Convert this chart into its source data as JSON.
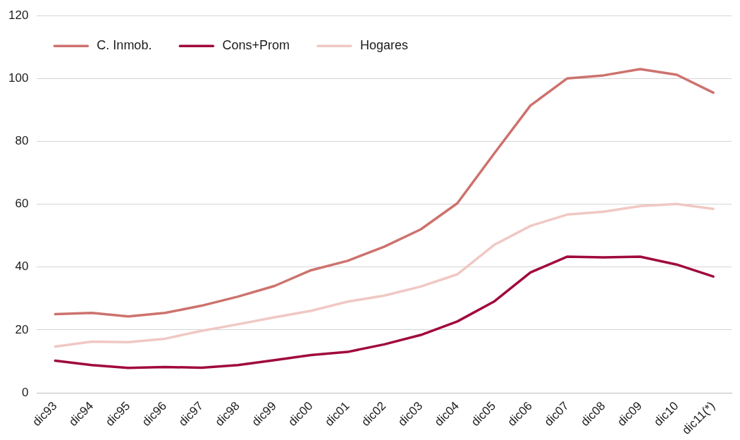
{
  "chart_data": {
    "type": "line",
    "categories": [
      "dic93",
      "dic94",
      "dic95",
      "dic96",
      "dic97",
      "dic98",
      "dic99",
      "dic00",
      "dic01",
      "dic02",
      "dic03",
      "dic04",
      "dic05",
      "dic06",
      "dic07",
      "dic08",
      "dic09",
      "dic10",
      "dic11(*)"
    ],
    "series": [
      {
        "name": "C. Inmob.",
        "color": "#cd726d",
        "values": [
          25,
          25.4,
          24.3,
          25.4,
          27.7,
          30.6,
          34,
          39,
          42,
          46.5,
          52,
          60.3,
          76,
          91.4,
          100,
          101,
          103,
          101.2,
          95.5
        ]
      },
      {
        "name": "Cons+Prom",
        "color": "#a0093c",
        "values": [
          10.2,
          8.8,
          7.9,
          8.2,
          8,
          8.8,
          10.4,
          12,
          13,
          15.4,
          18.4,
          22.7,
          29,
          38.3,
          43.3,
          43.1,
          43.3,
          40.8,
          37
        ]
      },
      {
        "name": "Hogares",
        "color": "#f0c8c3",
        "values": [
          14.7,
          16.3,
          16.1,
          17.2,
          19.7,
          21.8,
          24,
          26.1,
          29,
          30.9,
          33.8,
          37.7,
          47,
          53.1,
          56.7,
          57.6,
          59.4,
          60.1,
          58.5
        ]
      }
    ],
    "ylim": [
      0,
      120
    ],
    "yticks": [
      0,
      20,
      40,
      60,
      80,
      100,
      120
    ],
    "grid": "y",
    "legend": "top left",
    "marker": "none",
    "line_style": "solid"
  }
}
